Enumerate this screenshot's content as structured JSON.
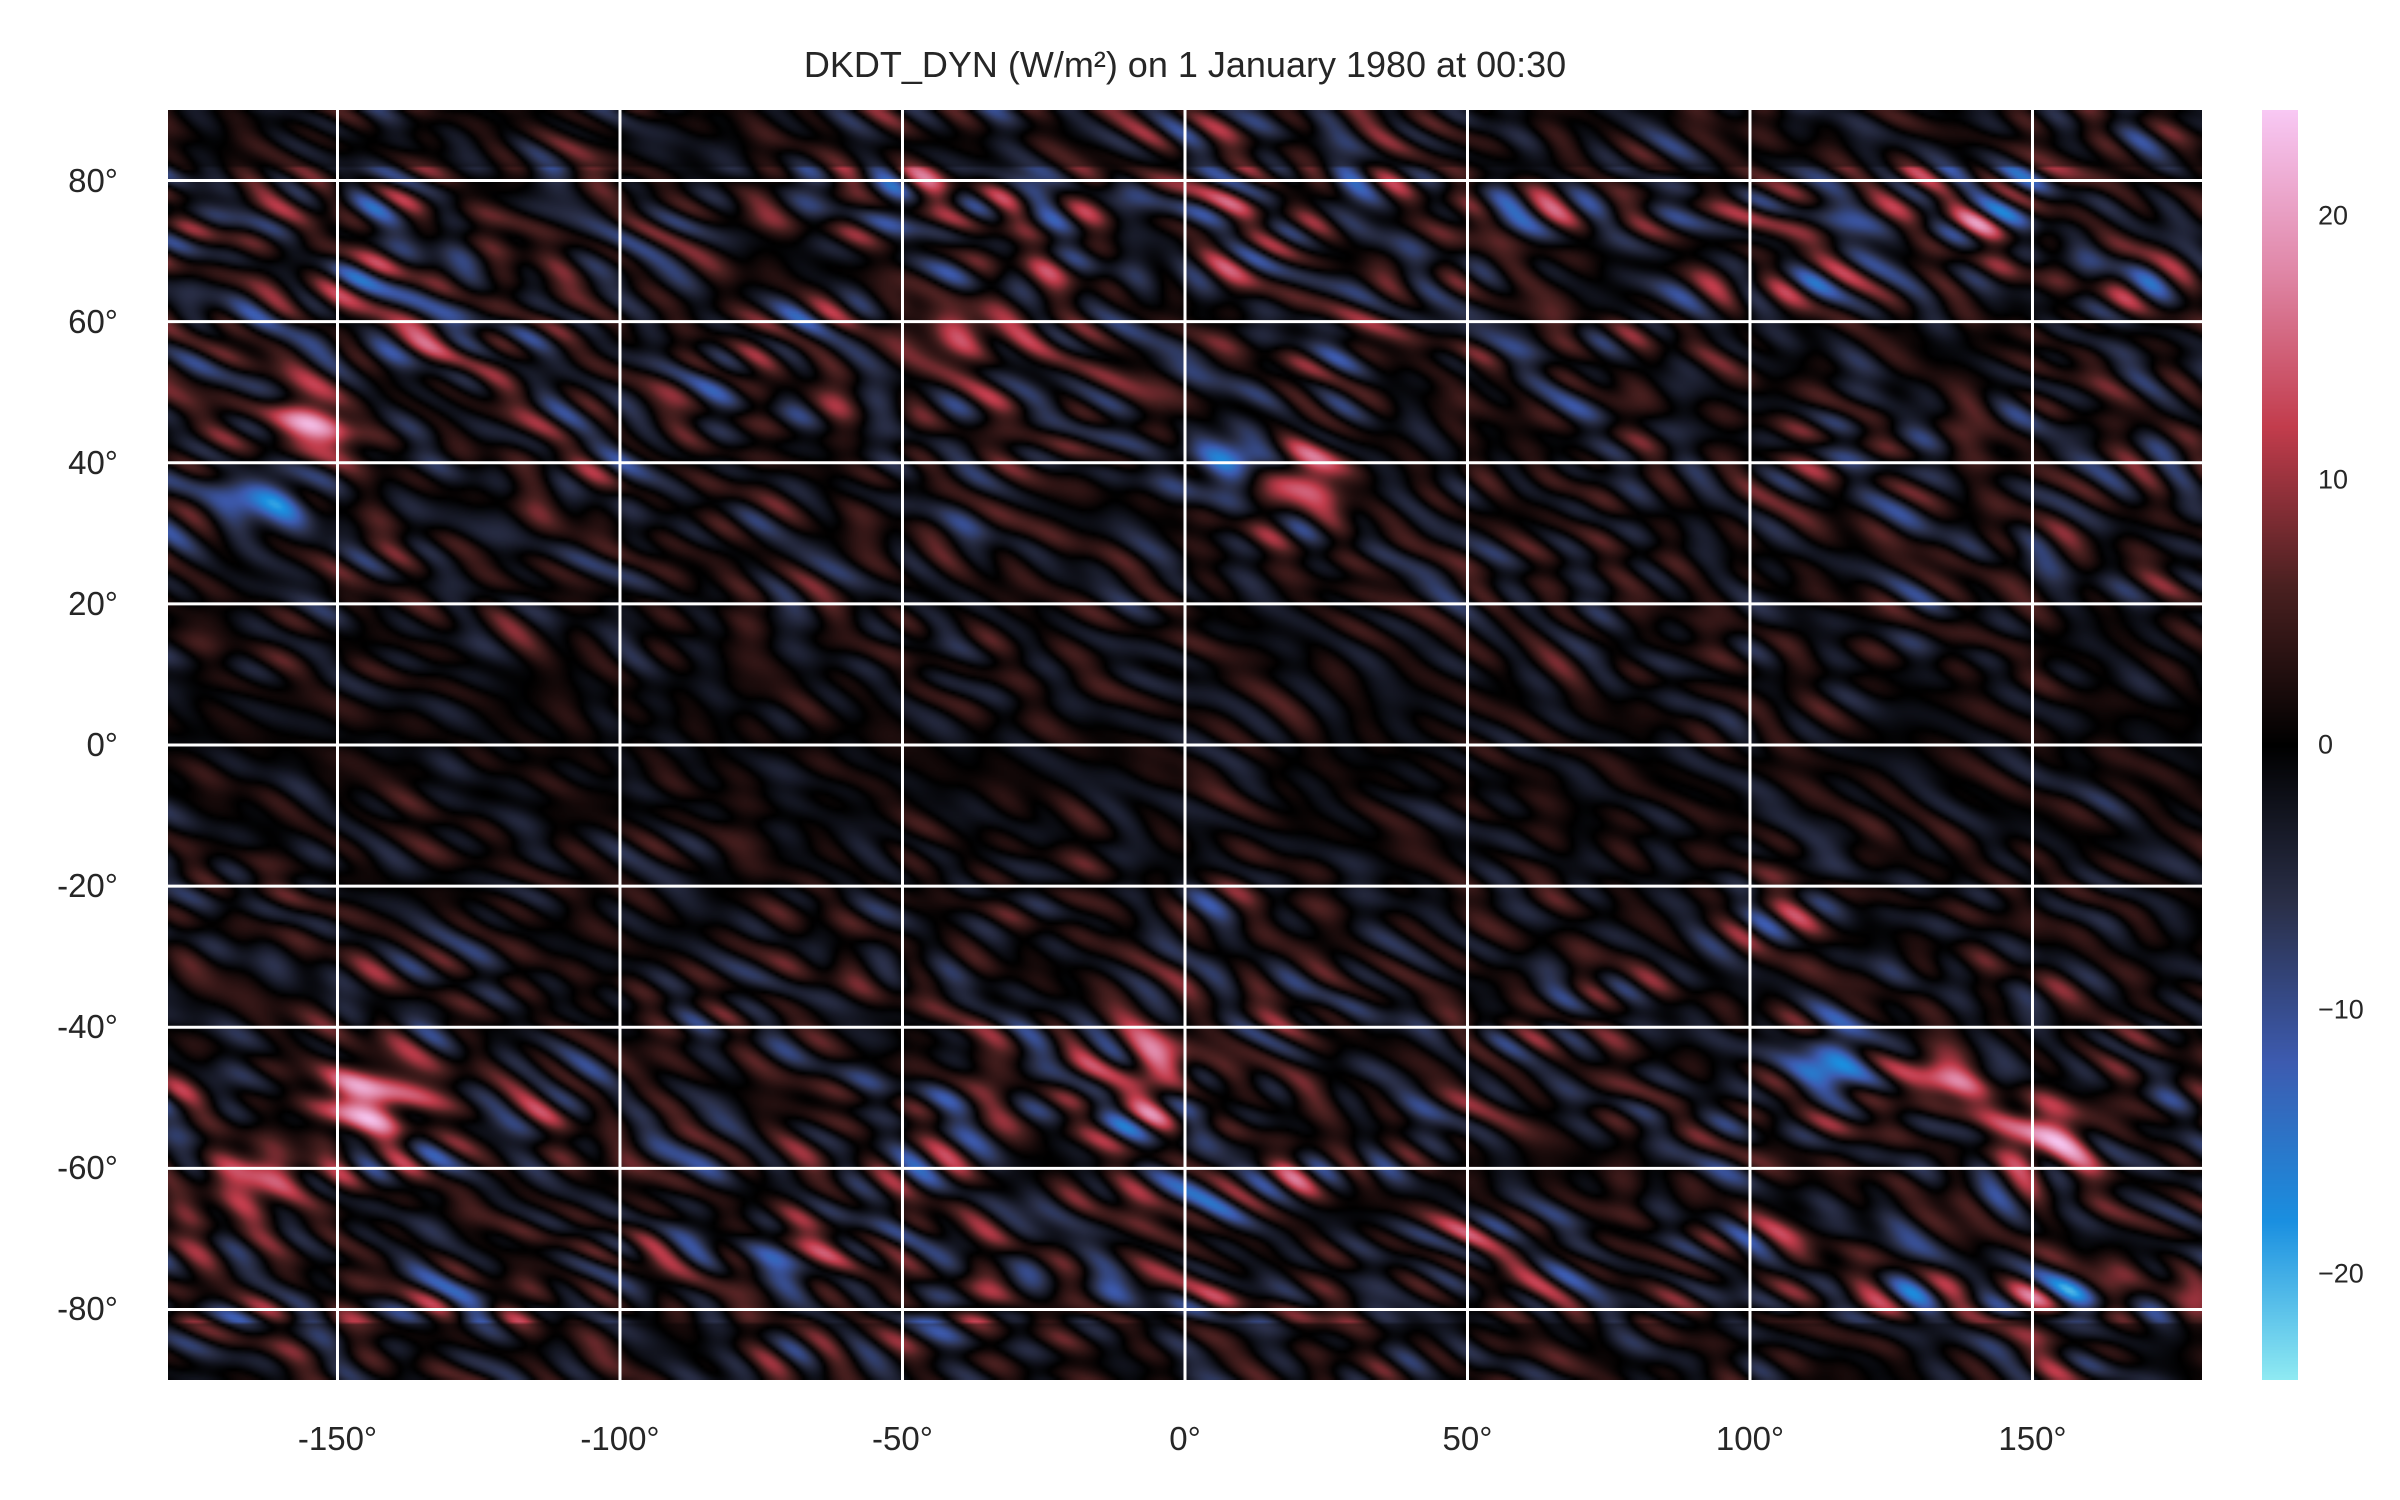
{
  "chart_data": {
    "type": "heatmap",
    "title": "DKDT_DYN (W/m²) on 1 January 1980 at 00:30",
    "xlabel": "",
    "ylabel": "",
    "xlim": [
      -180,
      180
    ],
    "ylim": [
      -90,
      90
    ],
    "x_ticks": [
      -150,
      -100,
      -50,
      0,
      50,
      100,
      150
    ],
    "x_tick_labels": [
      "-150°",
      "-100°",
      "-50°",
      "0°",
      "50°",
      "100°",
      "150°"
    ],
    "y_ticks": [
      80,
      60,
      40,
      20,
      0,
      -20,
      -40,
      -60,
      -80
    ],
    "y_tick_labels": [
      "80°",
      "60°",
      "40°",
      "20°",
      "0°",
      "-20°",
      "-40°",
      "-60°",
      "-80°"
    ],
    "grid": true,
    "colorbar": {
      "range": [
        -24,
        24
      ],
      "ticks": [
        20,
        10,
        0,
        -10,
        -20
      ],
      "tick_labels": [
        "20",
        "10",
        "0",
        "−10",
        "−20"
      ],
      "colors": [
        "#8feaf2",
        "#1a8fe0",
        "#3d5bb0",
        "#2a2f48",
        "#000000",
        "#4a2020",
        "#c23c4c",
        "#e088a8",
        "#f8c8f4"
      ]
    },
    "features": [
      {
        "label": "strong positive band",
        "lon": -143,
        "lat": -50,
        "value": 20
      },
      {
        "label": "strong negative core",
        "lon": 10,
        "lat": 40,
        "value": -16
      },
      {
        "label": "strong positive arc",
        "lon": 20,
        "lat": 38,
        "value": 16
      },
      {
        "label": "positive arc",
        "lon": -155,
        "lat": 45,
        "value": 14
      },
      {
        "label": "negative band",
        "lon": 115,
        "lat": -45,
        "value": -14
      },
      {
        "label": "positive band",
        "lon": 130,
        "lat": -48,
        "value": 12
      },
      {
        "label": "positive arc",
        "lon": 153,
        "lat": -55,
        "value": 14
      },
      {
        "label": "negative arc",
        "lon": -163,
        "lat": 35,
        "value": -14
      },
      {
        "label": "positive arc",
        "lon": -40,
        "lat": 58,
        "value": 12
      },
      {
        "label": "positive patch",
        "lon": -5,
        "lat": -45,
        "value": 12
      },
      {
        "label": "positive arc",
        "lon": -165,
        "lat": -62,
        "value": 14
      }
    ]
  }
}
